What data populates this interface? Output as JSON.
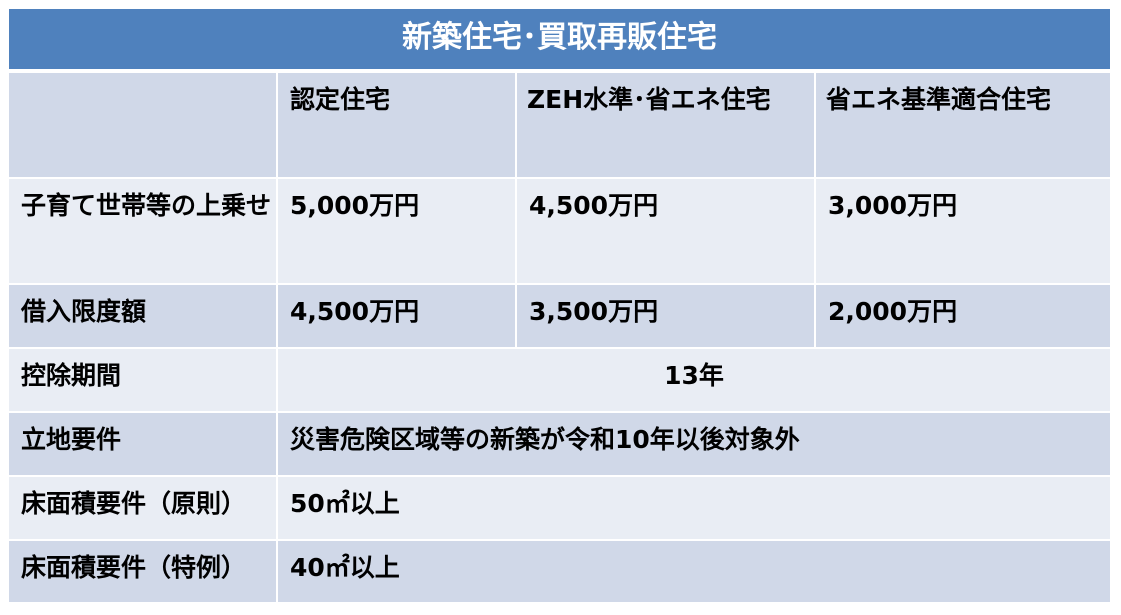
{
  "title": "新築住宅･買取再販住宅",
  "columns": [
    "",
    "認定住宅",
    "ZEH水準･省エネ住宅",
    "省エネ基準適合住宅"
  ],
  "rows": [
    {
      "label": "子育て世帯等の上乗せ",
      "values": [
        "5,000万円",
        "4,500万円",
        "3,000万円"
      ]
    },
    {
      "label": "借入限度額",
      "values": [
        "4,500万円",
        "3,500万円",
        "2,000万円"
      ]
    },
    {
      "label": "控除期間",
      "value": "13年"
    },
    {
      "label": "立地要件",
      "value": "災害危険区域等の新築が令和10年以後対象外"
    },
    {
      "label": "床面積要件（原則）",
      "value": "50㎡以上"
    },
    {
      "label": "床面積要件（特例）",
      "value": "40㎡以上"
    }
  ],
  "colors": {
    "header": "#4F81BD",
    "band_dark": "#D0D8E8",
    "band_light": "#E9EDF4"
  }
}
